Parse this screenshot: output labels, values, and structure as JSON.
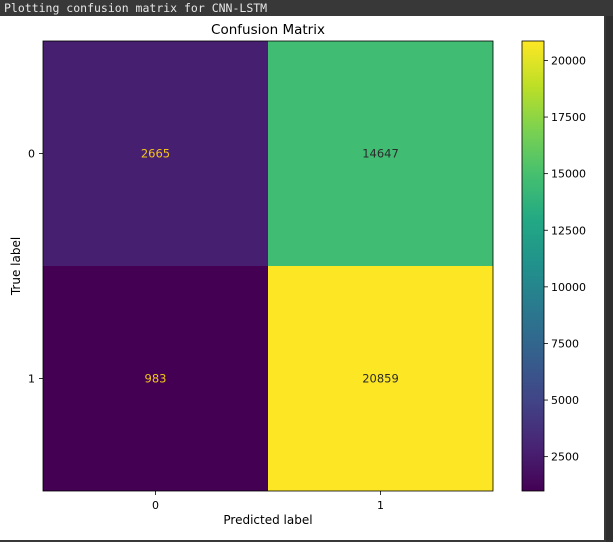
{
  "output": {
    "console_text": "Plotting confusion matrix for CNN-LSTM"
  },
  "chart_data": {
    "type": "heatmap",
    "title": "Confusion Matrix",
    "xlabel": "Predicted label",
    "ylabel": "True label",
    "x_categories": [
      "0",
      "1"
    ],
    "y_categories": [
      "0",
      "1"
    ],
    "matrix": [
      [
        2665,
        14647
      ],
      [
        983,
        20859
      ]
    ],
    "colormap": "viridis",
    "colorbar": {
      "min": 983,
      "max": 20859,
      "ticks": [
        2500,
        5000,
        7500,
        10000,
        12500,
        15000,
        17500,
        20000
      ]
    },
    "text_color_dark_cell": "#f2c51a",
    "text_color_light_cell": "#2b2b2b"
  }
}
